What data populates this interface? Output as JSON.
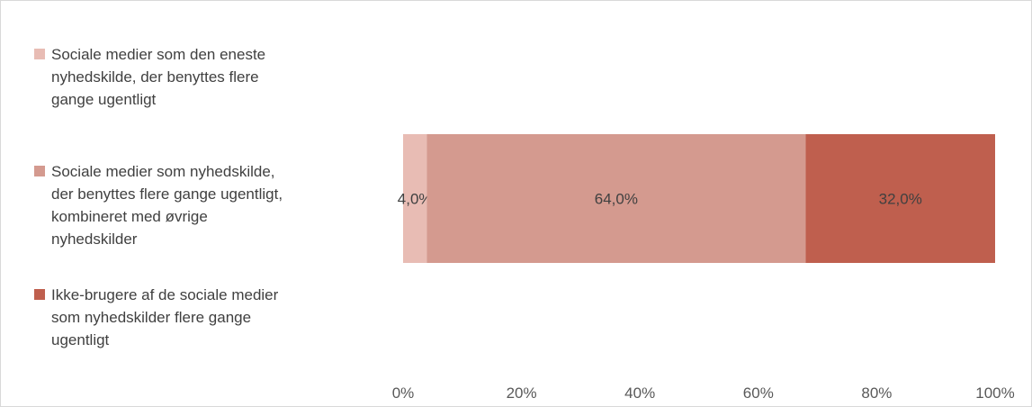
{
  "chart_data": {
    "type": "bar",
    "orientation": "horizontal",
    "stacked": "100%",
    "categories": [
      ""
    ],
    "series": [
      {
        "name": "Sociale medier som den eneste nyhedskilde, der benyttes flere gange ugentligt",
        "values": [
          4.0
        ],
        "label": "4,0%",
        "color": "#e8bcb4"
      },
      {
        "name": "Sociale medier som nyhedskilde, der benyttes flere gange ugentligt, kombineret med øvrige nyhedskilder",
        "values": [
          64.0
        ],
        "label": "64,0%",
        "color": "#d49a8f"
      },
      {
        "name": "Ikke-brugere af de sociale medier som nyhedskilder flere gange ugentligt",
        "values": [
          32.0
        ],
        "label": "32,0%",
        "color": "#bf5f4e"
      }
    ],
    "xlim": [
      0,
      100
    ],
    "x_ticks": [
      "0%",
      "20%",
      "40%",
      "60%",
      "80%",
      "100%"
    ],
    "legend": "left",
    "grid": false
  },
  "legend_items": [
    {
      "lines": [
        "Sociale medier som den eneste",
        "nyhedskilde, der benyttes flere",
        "gange ugentligt"
      ]
    },
    {
      "lines": [
        "Sociale medier som nyhedskilde,",
        "der benyttes flere gange ugentligt,",
        "kombineret med øvrige",
        "nyhedskilder"
      ]
    },
    {
      "lines": [
        "Ikke-brugere af de sociale medier",
        "som nyhedskilder flere gange",
        "ugentligt"
      ]
    }
  ]
}
